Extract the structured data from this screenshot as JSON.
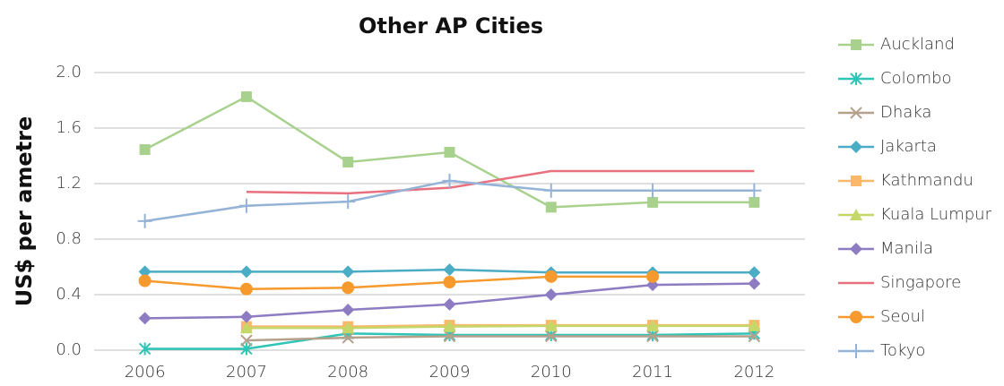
{
  "chart_data": {
    "type": "line",
    "title": "Other AP Cities",
    "y_label": "US$ per ametre",
    "categories": [
      "2006",
      "2007",
      "2008",
      "2009",
      "2010",
      "2011",
      "2012"
    ],
    "ylim": [
      0,
      2
    ],
    "yticks": [
      {
        "value": 0,
        "label": "0.0"
      },
      0.4,
      0.8,
      1.2,
      1.6,
      {
        "value": 2,
        "label": "2.0"
      }
    ],
    "grid": true,
    "legend": "right",
    "series": [
      {
        "name": "Auckland",
        "color": "#a9d18e",
        "marker": "square",
        "values": [
          1.445,
          1.826,
          1.355,
          1.426,
          1.03,
          1.065,
          1.065
        ]
      },
      {
        "name": "Colombo",
        "color": "#2ec4b6",
        "marker": "asterisk",
        "values": [
          0.01,
          0.01,
          0.12,
          0.11,
          0.11,
          0.11,
          0.12
        ]
      },
      {
        "name": "Dhaka",
        "color": "#b5a08c",
        "marker": "x",
        "values": [
          null,
          0.07,
          0.09,
          0.1,
          0.1,
          0.1,
          0.1
        ]
      },
      {
        "name": "Jakarta",
        "color": "#4bacc6",
        "marker": "diamond",
        "values": [
          0.565,
          0.565,
          0.565,
          0.58,
          0.56,
          0.56,
          0.56
        ]
      },
      {
        "name": "Kathmandu",
        "color": "#fbb86b",
        "marker": "square",
        "values": [
          null,
          0.17,
          0.17,
          0.18,
          0.18,
          0.18,
          0.18
        ]
      },
      {
        "name": "Kuala Lumpur",
        "color": "#c4d86a",
        "marker": "triangle",
        "values": [
          null,
          0.16,
          0.16,
          0.17,
          0.175,
          0.175,
          0.175
        ]
      },
      {
        "name": "Manila",
        "color": "#8e7cc3",
        "marker": "diamond",
        "values": [
          0.23,
          0.24,
          0.29,
          0.33,
          0.4,
          0.47,
          0.48
        ]
      },
      {
        "name": "Singapore",
        "color": "#e8707f",
        "marker": "none",
        "values": [
          null,
          1.14,
          1.13,
          1.17,
          1.29,
          1.29,
          1.29
        ]
      },
      {
        "name": "Seoul",
        "color": "#f79a2e",
        "marker": "circle",
        "values": [
          0.5,
          0.44,
          0.45,
          0.49,
          0.53,
          0.53,
          null
        ]
      },
      {
        "name": "Tokyo",
        "color": "#95b3d7",
        "marker": "plus",
        "values": [
          0.93,
          1.04,
          1.07,
          1.22,
          1.15,
          1.15,
          1.15
        ]
      }
    ]
  }
}
